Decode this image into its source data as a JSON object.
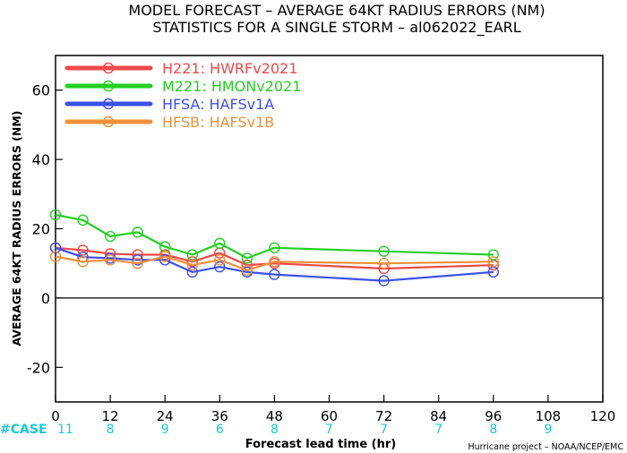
{
  "chart_data": {
    "type": "line",
    "title": "MODEL FORECAST – AVERAGE 64KT RADIUS ERRORS (NM)",
    "subtitle": "STATISTICS FOR A SINGLE STORM – al062022_EARL",
    "xlabel": "Forecast lead time (hr)",
    "ylabel": "AVERAGE 64KT RADIUS ERRORS (NM)",
    "xlim": [
      0,
      120
    ],
    "ylim": [
      -30,
      70
    ],
    "xticks": [
      0,
      12,
      24,
      36,
      48,
      60,
      72,
      84,
      96,
      108,
      120
    ],
    "yticks": [
      -20,
      0,
      20,
      40,
      60
    ],
    "grid": false,
    "legend_position": "top-left",
    "zero_line": true,
    "series": [
      {
        "name": "H221: HWRFv2021",
        "color": "#f04848",
        "x": [
          0,
          6,
          12,
          18,
          24,
          30,
          36,
          42,
          48,
          72,
          96
        ],
        "y": [
          14.5,
          13.8,
          12.8,
          12.5,
          12.5,
          10.5,
          13,
          9.5,
          10,
          8.5,
          9.5
        ]
      },
      {
        "name": "M221: HMONv2021",
        "color": "#22d022",
        "x": [
          0,
          6,
          12,
          18,
          24,
          30,
          36,
          42,
          48,
          72,
          96
        ],
        "y": [
          24,
          22.5,
          17.8,
          19,
          14.8,
          12.5,
          15.8,
          11.5,
          14.5,
          13.5,
          12.5
        ]
      },
      {
        "name": "HFSA: HAFSv1A",
        "color": "#3c50e8",
        "x": [
          0,
          6,
          12,
          18,
          24,
          30,
          36,
          42,
          48,
          72,
          96
        ],
        "y": [
          14.5,
          11.8,
          11.5,
          11,
          11,
          7.5,
          9,
          7.5,
          6.8,
          5,
          7.5
        ]
      },
      {
        "name": "HFSB: HAFSv1B",
        "color": "#f09038",
        "x": [
          0,
          6,
          12,
          18,
          24,
          30,
          36,
          42,
          48,
          72,
          96
        ],
        "y": [
          12,
          10.5,
          11,
          10,
          12,
          9.5,
          11,
          8,
          10.5,
          10,
          10.5
        ]
      }
    ],
    "case_label": "#CASE",
    "case_label_color": "#19c9d4",
    "cases": [
      {
        "x": 0,
        "n": "11"
      },
      {
        "x": 12,
        "n": "8"
      },
      {
        "x": 24,
        "n": "9"
      },
      {
        "x": 36,
        "n": "6"
      },
      {
        "x": 48,
        "n": "8"
      },
      {
        "x": 60,
        "n": "7"
      },
      {
        "x": 72,
        "n": "7"
      },
      {
        "x": 84,
        "n": "7"
      },
      {
        "x": 96,
        "n": "8"
      },
      {
        "x": 108,
        "n": "9"
      }
    ],
    "credit": "Hurricane project – NOAA/NCEP/EMC"
  }
}
